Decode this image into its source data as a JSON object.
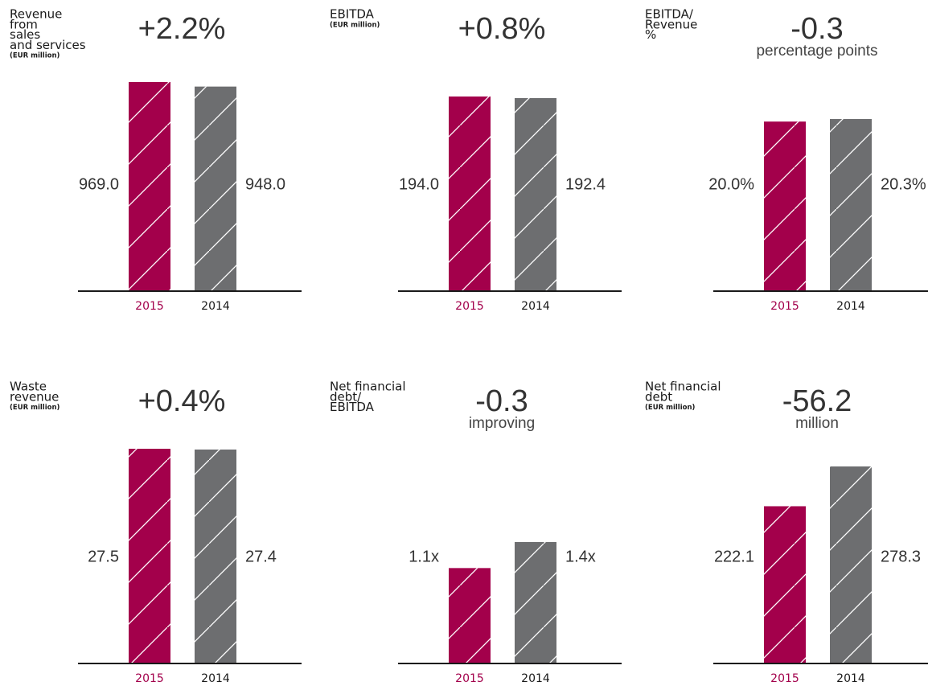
{
  "chart_data": [
    {
      "type": "bar",
      "title": [
        "Revenue",
        "from",
        "sales",
        "and services"
      ],
      "subtitle": "(EUR million)",
      "headline": "+2.2%",
      "categories": [
        "2015",
        "2014"
      ],
      "values": [
        969.0,
        948.0
      ],
      "value_labels": [
        "969.0",
        "948.0"
      ],
      "colors": [
        "#a3004b",
        "#6d6e70"
      ]
    },
    {
      "type": "bar",
      "title": [
        "EBITDA"
      ],
      "subtitle": "(EUR million)",
      "headline": "+0.8%",
      "categories": [
        "2015",
        "2014"
      ],
      "values": [
        194.0,
        192.4
      ],
      "value_labels": [
        "194.0",
        "192.4"
      ],
      "colors": [
        "#a3004b",
        "#6d6e70"
      ]
    },
    {
      "type": "bar",
      "title": [
        "EBITDA/",
        "Revenue",
        "%"
      ],
      "headline": "-0.3",
      "headline_note": "percentage points",
      "categories": [
        "2015",
        "2014"
      ],
      "values": [
        20.0,
        20.3
      ],
      "value_labels": [
        "20.0%",
        "20.3%"
      ],
      "colors": [
        "#a3004b",
        "#6d6e70"
      ]
    },
    {
      "type": "bar",
      "title": [
        "Waste",
        "revenue"
      ],
      "subtitle": "(EUR million)",
      "headline": "+0.4%",
      "categories": [
        "2015",
        "2014"
      ],
      "values": [
        27.5,
        27.4
      ],
      "value_labels": [
        "27.5",
        "27.4"
      ],
      "colors": [
        "#a3004b",
        "#6d6e70"
      ]
    },
    {
      "type": "bar",
      "title": [
        "Net financial",
        "debt/",
        "EBITDA"
      ],
      "headline": "-0.3",
      "headline_note": "improving",
      "categories": [
        "2015",
        "2014"
      ],
      "values": [
        1.1,
        1.4
      ],
      "value_labels": [
        "1.1x",
        "1.4x"
      ],
      "colors": [
        "#a3004b",
        "#6d6e70"
      ]
    },
    {
      "type": "bar",
      "title": [
        "Net financial",
        "debt"
      ],
      "subtitle": "(EUR million)",
      "headline": "-56.2",
      "headline_note": "million",
      "categories": [
        "2015",
        "2014"
      ],
      "values": [
        222.1,
        278.3
      ],
      "value_labels": [
        "222.1",
        "278.3"
      ],
      "colors": [
        "#a3004b",
        "#6d6e70"
      ]
    }
  ]
}
